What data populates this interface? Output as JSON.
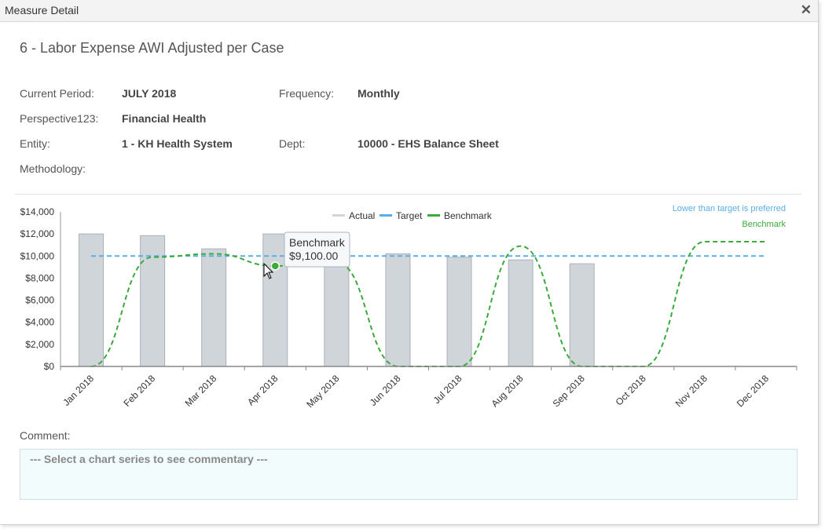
{
  "dialog": {
    "title": "Measure Detail",
    "close_icon": "close-icon"
  },
  "measure": {
    "title": "6 - Labor Expense AWI Adjusted per Case",
    "info": {
      "current_period_label": "Current Period:",
      "current_period_value": "JULY 2018",
      "frequency_label": "Frequency:",
      "frequency_value": "Monthly",
      "perspective_label": "Perspective123:",
      "perspective_value": "Financial Health",
      "entity_label": "Entity:",
      "entity_value": "1 - KH Health System",
      "dept_label": "Dept:",
      "dept_value": "10000 - EHS Balance Sheet",
      "methodology_label": "Methodology:"
    }
  },
  "chart_data": {
    "type": "bar",
    "categories": [
      "Jan 2018",
      "Feb 2018",
      "Mar 2018",
      "Apr 2018",
      "May 2018",
      "Jun 2018",
      "Jul 2018",
      "Aug 2018",
      "Sep 2018",
      "Oct 2018",
      "Nov 2018",
      "Dec 2018"
    ],
    "y_ticks": [
      "$0",
      "$2,000",
      "$4,000",
      "$6,000",
      "$8,000",
      "$10,000",
      "$12,000",
      "$14,000"
    ],
    "ylim": [
      0,
      14000
    ],
    "series": [
      {
        "name": "Actual",
        "type": "bar",
        "color": "#d0d5da",
        "values": [
          12000,
          11850,
          10650,
          12000,
          9800,
          10200,
          9900,
          9650,
          9300,
          null,
          null,
          null
        ]
      },
      {
        "name": "Target",
        "type": "dashed-line",
        "color": "#5aaee8",
        "values": [
          10000,
          10000,
          10000,
          10000,
          10000,
          10000,
          10000,
          10000,
          10000,
          10000,
          10000,
          10000
        ]
      },
      {
        "name": "Benchmark",
        "type": "dashed-spline",
        "color": "#3aaa3a",
        "values": [
          0,
          9900,
          10200,
          9100,
          9400,
          0,
          0,
          10900,
          0,
          0,
          11300,
          11300
        ]
      }
    ],
    "annotations": {
      "preference_note": "Lower than target is preferred",
      "series_note": "Benchmark"
    },
    "tooltip": {
      "series": "Benchmark",
      "value": "$9,100.00",
      "category_index": 3
    },
    "grid": false,
    "legend_position": "top-center"
  },
  "comment": {
    "label": "Comment:",
    "placeholder": "--- Select a chart series to see commentary ---"
  },
  "icons": {
    "cursor": "mouse-pointer-icon"
  }
}
